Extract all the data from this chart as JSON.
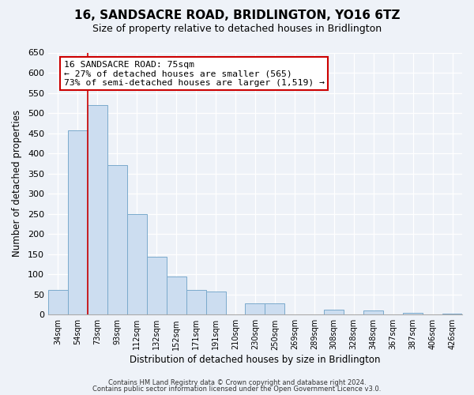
{
  "title": "16, SANDSACRE ROAD, BRIDLINGTON, YO16 6TZ",
  "subtitle": "Size of property relative to detached houses in Bridlington",
  "xlabel": "Distribution of detached houses by size in Bridlington",
  "ylabel": "Number of detached properties",
  "bar_color": "#ccddf0",
  "bar_edge_color": "#7aaacc",
  "categories": [
    "34sqm",
    "54sqm",
    "73sqm",
    "93sqm",
    "112sqm",
    "132sqm",
    "152sqm",
    "171sqm",
    "191sqm",
    "210sqm",
    "230sqm",
    "250sqm",
    "269sqm",
    "289sqm",
    "308sqm",
    "328sqm",
    "348sqm",
    "367sqm",
    "387sqm",
    "406sqm",
    "426sqm"
  ],
  "values": [
    62,
    458,
    520,
    370,
    250,
    143,
    95,
    62,
    58,
    0,
    28,
    28,
    0,
    0,
    12,
    0,
    10,
    0,
    5,
    0,
    2
  ],
  "ylim": [
    0,
    650
  ],
  "yticks": [
    0,
    50,
    100,
    150,
    200,
    250,
    300,
    350,
    400,
    450,
    500,
    550,
    600,
    650
  ],
  "vline_index": 2,
  "vline_color": "#cc0000",
  "annotation_title": "16 SANDSACRE ROAD: 75sqm",
  "annotation_line1": "← 27% of detached houses are smaller (565)",
  "annotation_line2": "73% of semi-detached houses are larger (1,519) →",
  "annotation_box_color": "#ffffff",
  "annotation_box_edge": "#cc0000",
  "footer1": "Contains HM Land Registry data © Crown copyright and database right 2024.",
  "footer2": "Contains public sector information licensed under the Open Government Licence v3.0.",
  "background_color": "#eef2f8",
  "grid_color": "#ffffff",
  "title_fontsize": 11,
  "subtitle_fontsize": 9
}
